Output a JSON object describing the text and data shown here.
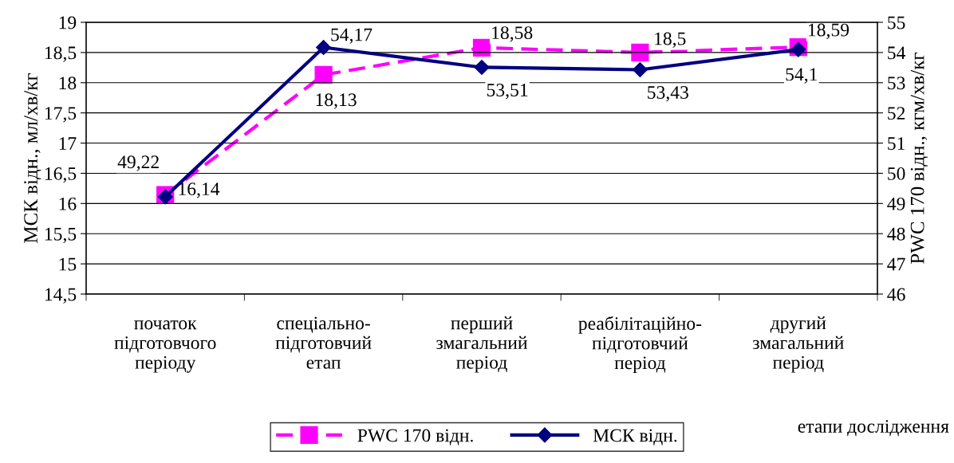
{
  "chart_data": {
    "type": "line",
    "ylabel": "МСК відн., мл/хв/кг",
    "y2label": "PWC 170 відн., кгм/хв/кг",
    "xlabel": "етапи дослідження",
    "categories": [
      "початок\nпідготовчого\nперіоду",
      "спеціально-\nпідготовчий\nетап",
      "перший\nзмагальний\nперіод",
      "реабілітаційно-\nпідготовчий\nперіод",
      "другий\nзмагальний\nперіод"
    ],
    "series": [
      {
        "name": "PWC 170 відн.",
        "color": "#ff00ff",
        "values": [
          16.14,
          18.13,
          18.58,
          18.5,
          18.59
        ],
        "value_labels": [
          "16,14",
          "18,13",
          "18,58",
          "18,5",
          "18,59"
        ],
        "marker": "square",
        "line_style": "dashed"
      },
      {
        "name": "МСК відн.",
        "color": "#000080",
        "values": [
          49.22,
          54.17,
          53.51,
          53.43,
          54.1
        ],
        "value_labels": [
          "49,22",
          "54,17",
          "53,51",
          "53,43",
          "54,1"
        ],
        "marker": "diamond",
        "line_style": "solid",
        "axis": "y2"
      }
    ],
    "ylim": [
      14.5,
      19
    ],
    "yticks": [
      {
        "value": 14.5,
        "label": "14,5"
      },
      15,
      {
        "value": 15.5,
        "label": "15,5"
      },
      16,
      {
        "value": 16.5,
        "label": "16,5"
      },
      17,
      {
        "value": 17.5,
        "label": "17,5"
      },
      18,
      {
        "value": 18.5,
        "label": "18,5"
      },
      19
    ],
    "y2lim": [
      46,
      55
    ],
    "y2ticks": [
      46,
      47,
      48,
      49,
      50,
      51,
      52,
      53,
      54,
      55
    ],
    "grid": "y",
    "legend": "bottom"
  }
}
